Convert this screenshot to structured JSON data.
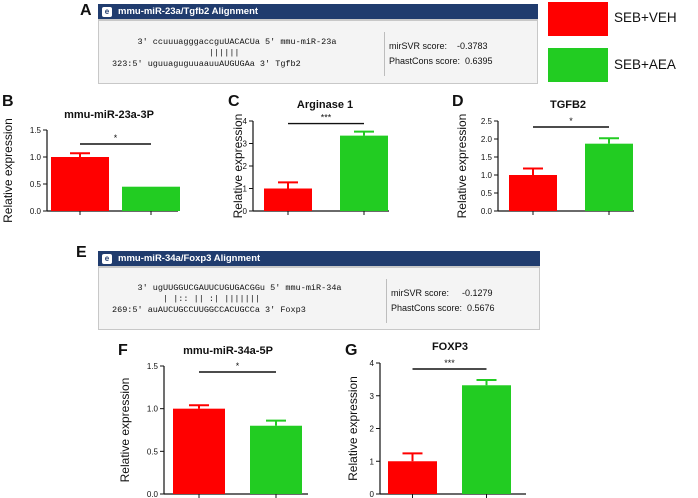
{
  "panels": {
    "A": "A",
    "B": "B",
    "C": "C",
    "D": "D",
    "E": "E",
    "F": "F",
    "G": "G"
  },
  "legend": {
    "items": [
      {
        "label": "SEB+VEH",
        "color": "#ff0000"
      },
      {
        "label": "SEB+AEA",
        "color": "#22cc22"
      }
    ]
  },
  "alignment_a": {
    "logo": "e",
    "title": "mmu-miR-23a/Tgfb2 Alignment",
    "line1": "     3' ccuuuagggaccguUACACUa 5' mmu-miR-23a",
    "line2": "                   ||||||",
    "line3": "323:5' uguuaguguuaauuAUGUGAa 3' Tgfb2",
    "mirsvr_label": "mirSVR score:",
    "mirsvr_value": "-0.3783",
    "phastcons_label": "PhastCons score:",
    "phastcons_value": "0.6395"
  },
  "alignment_e": {
    "logo": "e",
    "title": "mmu-miR-34a/Foxp3 Alignment",
    "line1": "     3' ugUUGGUCGAUUCUGUGACGGu 5' mmu-miR-34a",
    "line2": "          | |:: || :| |||||||",
    "line3": "269:5' auAUCUGCCUUGGCCACUGCCa 3' Foxp3",
    "mirsvr_label": "mirSVR score:",
    "mirsvr_value": "-0.1279",
    "phastcons_label": "PhastCons score:",
    "phastcons_value": "0.5676"
  },
  "chart_data": [
    {
      "id": "B",
      "type": "bar",
      "title": "mmu-miR-23a-3P",
      "ylabel": "Relative expression",
      "ylim": [
        0,
        1.5
      ],
      "yticks": [
        "0.0",
        "0.5",
        "1.0",
        "1.5"
      ],
      "groups": [
        "SEB+VEH",
        "SEB+AEA"
      ],
      "values": [
        1.0,
        0.45
      ],
      "errors": [
        0.07,
        0.0
      ],
      "significance": "*"
    },
    {
      "id": "C",
      "type": "bar",
      "title": "Arginase 1",
      "ylabel": "Relative expression",
      "ylim": [
        0,
        4
      ],
      "yticks": [
        "0",
        "1",
        "2",
        "3",
        "4"
      ],
      "groups": [
        "SEB+VEH",
        "SEB+AEA"
      ],
      "values": [
        1.0,
        3.35
      ],
      "errors": [
        0.27,
        0.18
      ],
      "significance": "***"
    },
    {
      "id": "D",
      "type": "bar",
      "title": "TGFB2",
      "ylabel": "Relative expression",
      "ylim": [
        0,
        2.5
      ],
      "yticks": [
        "0.0",
        "0.5",
        "1.0",
        "1.5",
        "2.0",
        "2.5"
      ],
      "groups": [
        "SEB+VEH",
        "SEB+AEA"
      ],
      "values": [
        1.0,
        1.87
      ],
      "errors": [
        0.18,
        0.15
      ],
      "significance": "*"
    },
    {
      "id": "F",
      "type": "bar",
      "title": "mmu-miR-34a-5P",
      "ylabel": "Relative expression",
      "ylim": [
        0,
        1.5
      ],
      "yticks": [
        "0.0",
        "0.5",
        "1.0",
        "1.5"
      ],
      "groups": [
        "SEB+VEH",
        "SEB+AEA"
      ],
      "values": [
        1.0,
        0.8
      ],
      "errors": [
        0.04,
        0.06
      ],
      "significance": "*"
    },
    {
      "id": "G",
      "type": "bar",
      "title": "FOXP3",
      "ylabel": "Relative expression",
      "ylim": [
        0,
        4
      ],
      "yticks": [
        "0",
        "1",
        "2",
        "3",
        "4"
      ],
      "groups": [
        "SEB+VEH",
        "SEB+AEA"
      ],
      "values": [
        1.0,
        3.32
      ],
      "errors": [
        0.24,
        0.16
      ],
      "significance": "***"
    }
  ]
}
